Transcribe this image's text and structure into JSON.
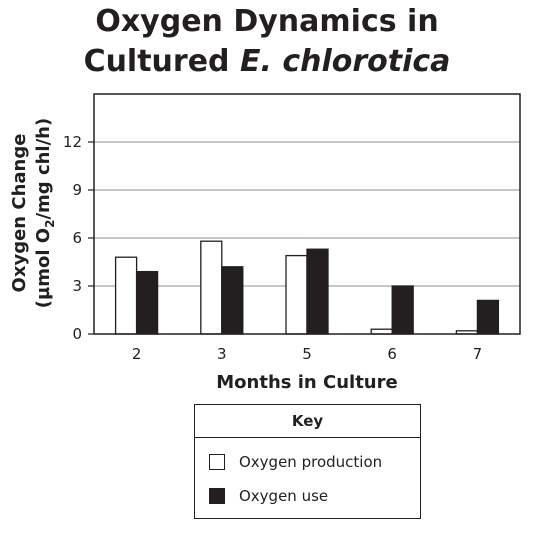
{
  "title": {
    "line1": "Oxygen Dynamics in",
    "line2_prefix": "Cultured ",
    "line2_italic": "E. chlorotica"
  },
  "chart_data": {
    "type": "bar",
    "categories": [
      "2",
      "3",
      "5",
      "6",
      "7"
    ],
    "series": [
      {
        "name": "Oxygen production",
        "values": [
          4.8,
          5.8,
          4.9,
          0.3,
          0.2
        ],
        "color": "#ffffff"
      },
      {
        "name": "Oxygen use",
        "values": [
          3.9,
          4.2,
          5.3,
          3.0,
          2.1
        ],
        "color": "#231f20"
      }
    ],
    "xlabel": "Months in Culture",
    "ylabel_line1": "Oxygen Change",
    "ylabel_line2_pre": "(µmol O",
    "ylabel_line2_sub": "2",
    "ylabel_line2_post": "/mg chl/h)",
    "yticks": [
      0,
      3,
      6,
      9,
      12
    ],
    "ylim": [
      0,
      15
    ],
    "grid": true,
    "legend_title": "Key",
    "legend_placement": "bottom"
  }
}
